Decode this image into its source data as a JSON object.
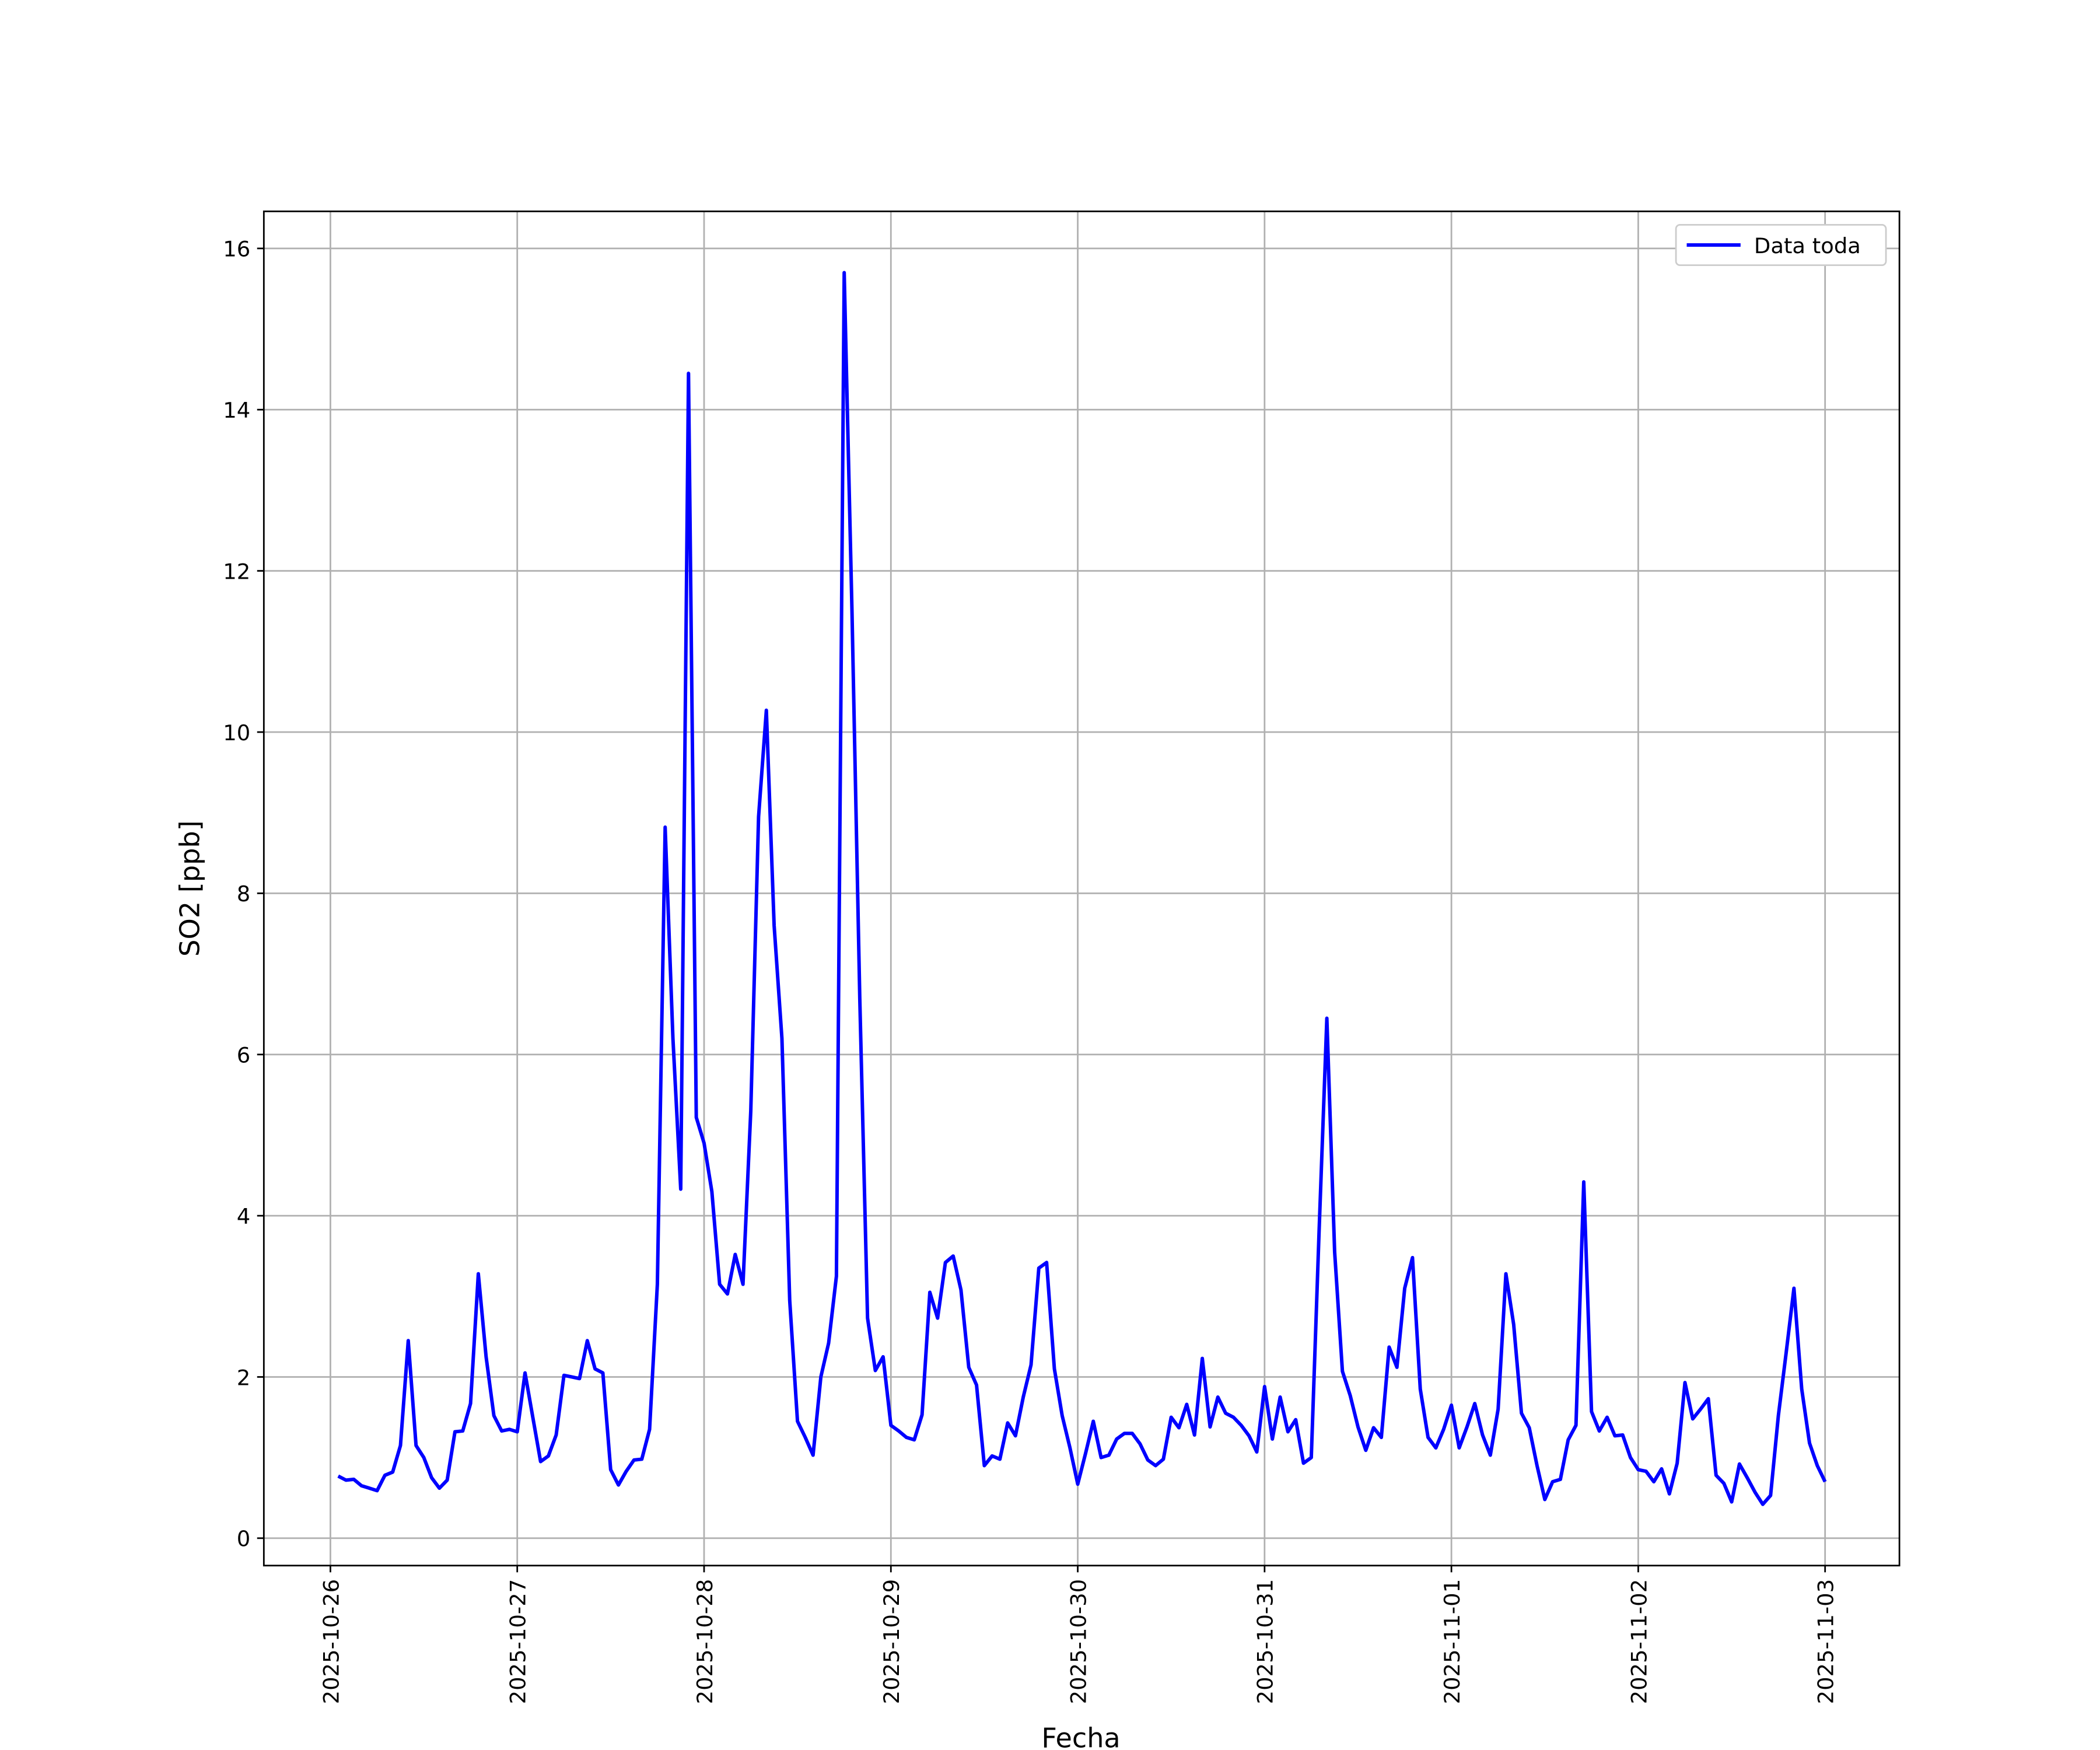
{
  "chart_data": {
    "type": "line",
    "x_label": "Fecha",
    "y_label": "SO2 [ppb]",
    "grid": true,
    "legend": "upper right",
    "xlim": [
      "2025-10-25T15:27",
      "2025-11-03T09:33"
    ],
    "xticks": [
      "2025-10-26",
      "2025-10-27",
      "2025-10-28",
      "2025-10-29",
      "2025-10-30",
      "2025-10-31",
      "2025-11-01",
      "2025-11-02",
      "2025-11-03"
    ],
    "ylim": [
      -0.34,
      16.46
    ],
    "yticks": [
      0,
      2,
      4,
      6,
      8,
      10,
      12,
      14,
      16
    ],
    "x": [
      "2025-10-26T01:00",
      "2025-10-26T02:00",
      "2025-10-26T03:00",
      "2025-10-26T04:00",
      "2025-10-26T05:00",
      "2025-10-26T06:00",
      "2025-10-26T07:00",
      "2025-10-26T08:00",
      "2025-10-26T09:00",
      "2025-10-26T10:00",
      "2025-10-26T11:00",
      "2025-10-26T12:00",
      "2025-10-26T13:00",
      "2025-10-26T14:00",
      "2025-10-26T15:00",
      "2025-10-26T16:00",
      "2025-10-26T17:00",
      "2025-10-26T18:00",
      "2025-10-26T19:00",
      "2025-10-26T20:00",
      "2025-10-26T21:00",
      "2025-10-26T22:00",
      "2025-10-26T23:00",
      "2025-10-27T00:00",
      "2025-10-27T01:00",
      "2025-10-27T02:00",
      "2025-10-27T03:00",
      "2025-10-27T04:00",
      "2025-10-27T05:00",
      "2025-10-27T06:00",
      "2025-10-27T07:00",
      "2025-10-27T08:00",
      "2025-10-27T09:00",
      "2025-10-27T10:00",
      "2025-10-27T11:00",
      "2025-10-27T12:00",
      "2025-10-27T13:00",
      "2025-10-27T14:00",
      "2025-10-27T15:00",
      "2025-10-27T16:00",
      "2025-10-27T17:00",
      "2025-10-27T18:00",
      "2025-10-27T19:00",
      "2025-10-27T20:00",
      "2025-10-27T21:00",
      "2025-10-27T22:00",
      "2025-10-27T23:00",
      "2025-10-28T00:00",
      "2025-10-28T01:00",
      "2025-10-28T02:00",
      "2025-10-28T03:00",
      "2025-10-28T04:00",
      "2025-10-28T05:00",
      "2025-10-28T06:00",
      "2025-10-28T07:00",
      "2025-10-28T08:00",
      "2025-10-28T09:00",
      "2025-10-28T10:00",
      "2025-10-28T11:00",
      "2025-10-28T12:00",
      "2025-10-28T13:00",
      "2025-10-28T14:00",
      "2025-10-28T15:00",
      "2025-10-28T16:00",
      "2025-10-28T17:00",
      "2025-10-28T18:00",
      "2025-10-28T19:00",
      "2025-10-28T20:00",
      "2025-10-28T21:00",
      "2025-10-28T22:00",
      "2025-10-28T23:00",
      "2025-10-29T00:00",
      "2025-10-29T01:00",
      "2025-10-29T02:00",
      "2025-10-29T03:00",
      "2025-10-29T04:00",
      "2025-10-29T05:00",
      "2025-10-29T06:00",
      "2025-10-29T07:00",
      "2025-10-29T08:00",
      "2025-10-29T09:00",
      "2025-10-29T10:00",
      "2025-10-29T11:00",
      "2025-10-29T12:00",
      "2025-10-29T13:00",
      "2025-10-29T14:00",
      "2025-10-29T15:00",
      "2025-10-29T16:00",
      "2025-10-29T17:00",
      "2025-10-29T18:00",
      "2025-10-29T19:00",
      "2025-10-29T20:00",
      "2025-10-29T21:00",
      "2025-10-29T22:00",
      "2025-10-29T23:00",
      "2025-10-30T00:00",
      "2025-10-30T01:00",
      "2025-10-30T02:00",
      "2025-10-30T03:00",
      "2025-10-30T04:00",
      "2025-10-30T05:00",
      "2025-10-30T06:00",
      "2025-10-30T07:00",
      "2025-10-30T08:00",
      "2025-10-30T09:00",
      "2025-10-30T10:00",
      "2025-10-30T11:00",
      "2025-10-30T12:00",
      "2025-10-30T13:00",
      "2025-10-30T14:00",
      "2025-10-30T15:00",
      "2025-10-30T16:00",
      "2025-10-30T17:00",
      "2025-10-30T18:00",
      "2025-10-30T19:00",
      "2025-10-30T20:00",
      "2025-10-30T21:00",
      "2025-10-30T22:00",
      "2025-10-30T23:00",
      "2025-10-31T00:00",
      "2025-10-31T01:00",
      "2025-10-31T02:00",
      "2025-10-31T03:00",
      "2025-10-31T04:00",
      "2025-10-31T05:00",
      "2025-10-31T06:00",
      "2025-10-31T07:00",
      "2025-10-31T08:00",
      "2025-10-31T09:00",
      "2025-10-31T10:00",
      "2025-10-31T11:00",
      "2025-10-31T12:00",
      "2025-10-31T13:00",
      "2025-10-31T14:00",
      "2025-10-31T15:00",
      "2025-10-31T16:00",
      "2025-10-31T17:00",
      "2025-10-31T18:00",
      "2025-10-31T19:00",
      "2025-10-31T20:00",
      "2025-10-31T21:00",
      "2025-10-31T22:00",
      "2025-10-31T23:00",
      "2025-11-01T00:00",
      "2025-11-01T01:00",
      "2025-11-01T02:00",
      "2025-11-01T03:00",
      "2025-11-01T04:00",
      "2025-11-01T05:00",
      "2025-11-01T06:00",
      "2025-11-01T07:00",
      "2025-11-01T08:00",
      "2025-11-01T09:00",
      "2025-11-01T10:00",
      "2025-11-01T11:00",
      "2025-11-01T12:00",
      "2025-11-01T13:00",
      "2025-11-01T14:00",
      "2025-11-01T15:00",
      "2025-11-01T16:00",
      "2025-11-01T17:00",
      "2025-11-01T18:00",
      "2025-11-01T19:00",
      "2025-11-01T20:00",
      "2025-11-01T21:00",
      "2025-11-01T22:00",
      "2025-11-01T23:00",
      "2025-11-02T00:00",
      "2025-11-02T01:00",
      "2025-11-02T02:00",
      "2025-11-02T03:00",
      "2025-11-02T04:00",
      "2025-11-02T05:00",
      "2025-11-02T06:00",
      "2025-11-02T07:00",
      "2025-11-02T08:00",
      "2025-11-02T09:00",
      "2025-11-02T10:00",
      "2025-11-02T11:00",
      "2025-11-02T12:00",
      "2025-11-02T13:00",
      "2025-11-02T14:00",
      "2025-11-02T15:00",
      "2025-11-02T16:00",
      "2025-11-02T17:00",
      "2025-11-02T18:00",
      "2025-11-02T19:00",
      "2025-11-02T20:00",
      "2025-11-02T21:00",
      "2025-11-02T22:00",
      "2025-11-02T23:00",
      "2025-11-03T00:00"
    ],
    "series": [
      {
        "name": "Data toda",
        "color": "#0000ff",
        "values": [
          0.77,
          0.72,
          0.73,
          0.65,
          0.62,
          0.59,
          0.78,
          0.82,
          1.15,
          2.45,
          1.15,
          1.0,
          0.75,
          0.62,
          0.72,
          1.32,
          1.33,
          1.67,
          3.28,
          2.25,
          1.52,
          1.33,
          1.35,
          1.32,
          2.05,
          1.5,
          0.95,
          1.02,
          1.28,
          2.02,
          2.0,
          1.98,
          2.45,
          2.1,
          2.05,
          0.85,
          0.66,
          0.83,
          0.97,
          0.98,
          1.35,
          3.15,
          8.82,
          6.2,
          4.33,
          14.45,
          5.22,
          4.9,
          4.3,
          3.15,
          3.03,
          3.52,
          3.15,
          5.3,
          8.95,
          10.27,
          7.6,
          6.2,
          2.95,
          1.45,
          1.25,
          1.03,
          2.0,
          2.42,
          3.25,
          15.7,
          11.5,
          6.7,
          2.73,
          2.08,
          2.25,
          1.4,
          1.33,
          1.25,
          1.22,
          1.53,
          3.05,
          2.73,
          3.42,
          3.5,
          3.08,
          2.12,
          1.9,
          0.9,
          1.02,
          0.98,
          1.43,
          1.27,
          1.75,
          2.15,
          3.35,
          3.42,
          2.1,
          1.52,
          1.12,
          0.67,
          1.05,
          1.45,
          1.0,
          1.03,
          1.23,
          1.3,
          1.3,
          1.17,
          0.97,
          0.9,
          0.98,
          1.5,
          1.37,
          1.66,
          1.28,
          2.23,
          1.38,
          1.75,
          1.55,
          1.5,
          1.4,
          1.27,
          1.07,
          1.88,
          1.23,
          1.75,
          1.32,
          1.47,
          0.93,
          1.0,
          3.8,
          6.45,
          3.55,
          2.07,
          1.77,
          1.38,
          1.09,
          1.37,
          1.25,
          2.37,
          2.12,
          3.1,
          3.48,
          1.85,
          1.25,
          1.12,
          1.35,
          1.65,
          1.12,
          1.38,
          1.67,
          1.28,
          1.03,
          1.6,
          3.28,
          2.65,
          1.55,
          1.37,
          0.9,
          0.48,
          0.7,
          0.73,
          1.22,
          1.4,
          4.42,
          1.57,
          1.33,
          1.5,
          1.27,
          1.28,
          1.0,
          0.85,
          0.83,
          0.7,
          0.86,
          0.55,
          0.93,
          1.93,
          1.48,
          1.6,
          1.73,
          0.78,
          0.68,
          0.45,
          0.92,
          0.75,
          0.57,
          0.42,
          0.53,
          1.52,
          2.3,
          3.1,
          1.85,
          1.18,
          0.9,
          0.7
        ]
      }
    ]
  }
}
